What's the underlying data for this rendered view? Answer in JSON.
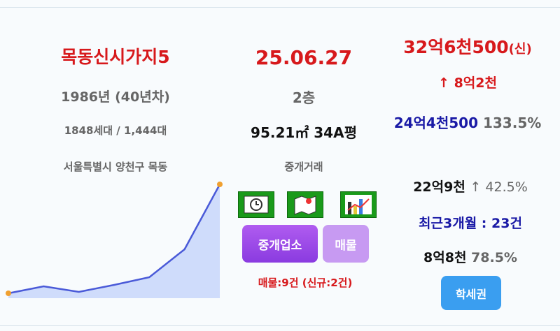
{
  "left": {
    "name": "목동신시가지5",
    "built": "1986년 (40년차)",
    "households": "1848세대 / 1,444대",
    "address": "서울특별시 양천구 목동"
  },
  "sparkline": {
    "values": [
      5,
      15,
      7,
      17,
      28,
      68,
      161
    ]
  },
  "middle": {
    "date": "25.06.27",
    "floor": "2층",
    "area": "95.21㎡ 34A평",
    "trade_type": "중개거래",
    "buttons": [
      "중개업소",
      "매물"
    ],
    "listings": "매물:9건 (신규:2건)"
  },
  "right": {
    "price": "32억6천500",
    "price_tag": "(신)",
    "change": "↑ 8억2천",
    "prev_price": "24억4천500",
    "prev_ratio": "133.5%",
    "low_price": "22억9천",
    "low_change": "↑ 42.5%",
    "recent": "최근3개월 : 23건",
    "jeonse": "8억8천",
    "jeonse_ratio": "78.5%",
    "badge": "학세권"
  }
}
